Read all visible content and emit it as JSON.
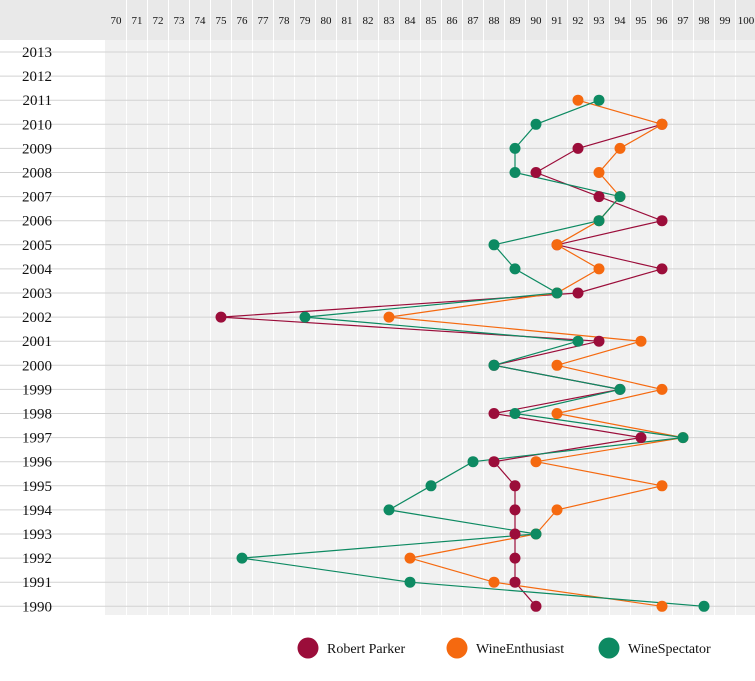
{
  "chart_data": {
    "type": "scatter",
    "x_range": [
      70,
      100
    ],
    "years": [
      2013,
      2012,
      2011,
      2010,
      2009,
      2008,
      2007,
      2006,
      2005,
      2004,
      2003,
      2002,
      2001,
      2000,
      1999,
      1998,
      1997,
      1996,
      1995,
      1994,
      1993,
      1992,
      1991,
      1990
    ],
    "x_ticks": [
      70,
      71,
      72,
      73,
      74,
      75,
      76,
      77,
      78,
      79,
      80,
      81,
      82,
      83,
      84,
      85,
      86,
      87,
      88,
      89,
      90,
      91,
      92,
      93,
      94,
      95,
      96,
      97,
      98,
      99,
      100
    ],
    "grid": true,
    "legend_position": "bottom-right",
    "series": [
      {
        "name": "Robert Parker",
        "color": "#9b0d3a",
        "points": [
          {
            "year": 2010,
            "score": 96
          },
          {
            "year": 2009,
            "score": 92
          },
          {
            "year": 2008,
            "score": 90
          },
          {
            "year": 2007,
            "score": 93
          },
          {
            "year": 2006,
            "score": 96
          },
          {
            "year": 2005,
            "score": 91
          },
          {
            "year": 2004,
            "score": 96
          },
          {
            "year": 2003,
            "score": 92
          },
          {
            "year": 2002,
            "score": 75
          },
          {
            "year": 2001,
            "score": 93
          },
          {
            "year": 2000,
            "score": 88
          },
          {
            "year": 1999,
            "score": 94
          },
          {
            "year": 1998,
            "score": 88
          },
          {
            "year": 1997,
            "score": 95
          },
          {
            "year": 1996,
            "score": 88
          },
          {
            "year": 1995,
            "score": 89
          },
          {
            "year": 1994,
            "score": 89
          },
          {
            "year": 1993,
            "score": 89
          },
          {
            "year": 1992,
            "score": 89
          },
          {
            "year": 1991,
            "score": 89
          },
          {
            "year": 1990,
            "score": 90
          }
        ]
      },
      {
        "name": "WineEnthusiast",
        "color": "#f5690f",
        "points": [
          {
            "year": 2011,
            "score": 92
          },
          {
            "year": 2010,
            "score": 96
          },
          {
            "year": 2009,
            "score": 94
          },
          {
            "year": 2008,
            "score": 93
          },
          {
            "year": 2007,
            "score": 94
          },
          {
            "year": 2006,
            "score": 93
          },
          {
            "year": 2005,
            "score": 91
          },
          {
            "year": 2004,
            "score": 93
          },
          {
            "year": 2003,
            "score": 91
          },
          {
            "year": 2002,
            "score": 83
          },
          {
            "year": 2001,
            "score": 95
          },
          {
            "year": 2000,
            "score": 91
          },
          {
            "year": 1999,
            "score": 96
          },
          {
            "year": 1998,
            "score": 91
          },
          {
            "year": 1997,
            "score": 97
          },
          {
            "year": 1996,
            "score": 90
          },
          {
            "year": 1995,
            "score": 96
          },
          {
            "year": 1994,
            "score": 91
          },
          {
            "year": 1993,
            "score": 90
          },
          {
            "year": 1992,
            "score": 84
          },
          {
            "year": 1991,
            "score": 88
          },
          {
            "year": 1990,
            "score": 96
          }
        ]
      },
      {
        "name": "WineSpectator",
        "color": "#0d8a62",
        "points": [
          {
            "year": 2011,
            "score": 93
          },
          {
            "year": 2010,
            "score": 90
          },
          {
            "year": 2009,
            "score": 89
          },
          {
            "year": 2008,
            "score": 89
          },
          {
            "year": 2007,
            "score": 94
          },
          {
            "year": 2006,
            "score": 93
          },
          {
            "year": 2005,
            "score": 88
          },
          {
            "year": 2004,
            "score": 89
          },
          {
            "year": 2003,
            "score": 91
          },
          {
            "year": 2002,
            "score": 79
          },
          {
            "year": 2001,
            "score": 92
          },
          {
            "year": 2000,
            "score": 88
          },
          {
            "year": 1999,
            "score": 94
          },
          {
            "year": 1998,
            "score": 89
          },
          {
            "year": 1997,
            "score": 97
          },
          {
            "year": 1996,
            "score": 87
          },
          {
            "year": 1995,
            "score": 85
          },
          {
            "year": 1994,
            "score": 83
          },
          {
            "year": 1993,
            "score": 90
          },
          {
            "year": 1992,
            "score": 76
          },
          {
            "year": 1991,
            "score": 84
          },
          {
            "year": 1990,
            "score": 98
          }
        ]
      }
    ]
  }
}
